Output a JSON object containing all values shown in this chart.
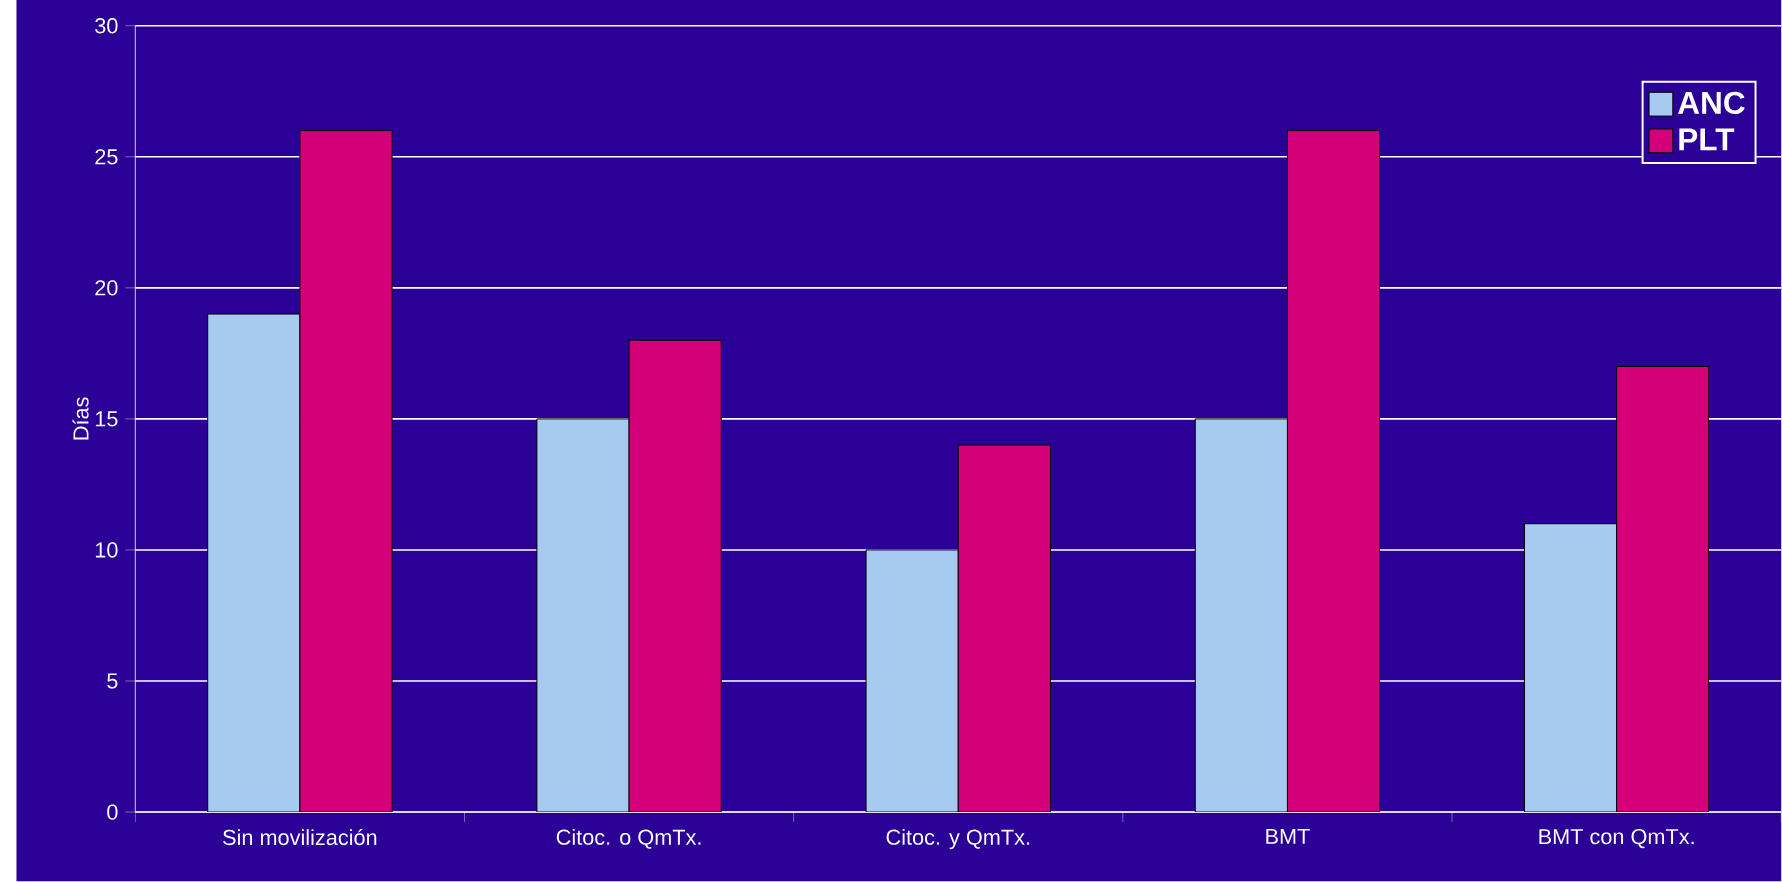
{
  "chart_data": {
    "type": "bar",
    "ylabel": "Días",
    "categories": [
      "Sin movilización",
      "Citoc. o QmTx.",
      "Citoc. y QmTx.",
      "BMT",
      "BMT con QmTx."
    ],
    "series": [
      {
        "name": "ANC",
        "color": "#a6caf0",
        "values": [
          19,
          15,
          10,
          15,
          11
        ]
      },
      {
        "name": "PLT",
        "color": "#d4007a",
        "values": [
          26,
          18,
          14,
          26,
          17
        ]
      }
    ],
    "ylim": [
      0,
      30
    ],
    "yticks": [
      0,
      5,
      10,
      15,
      20,
      25,
      30
    ],
    "grid": "y",
    "legend": "top right"
  }
}
